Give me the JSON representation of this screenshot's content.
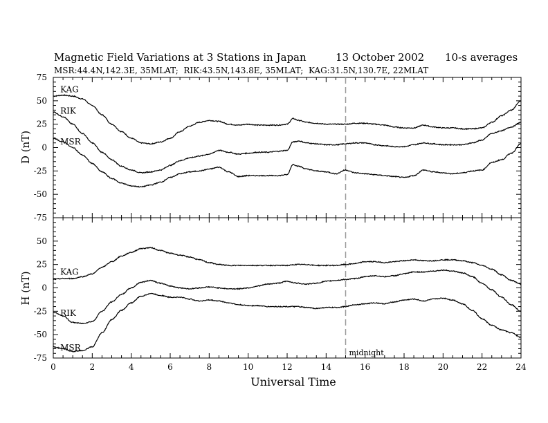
{
  "figure": {
    "title_main": "Magnetic Field Variations at 3 Stations in Japan",
    "date": "13 October 2002",
    "averaging": "10-s averages",
    "station_info": "MSR:44.4N,142.3E, 35MLAT;  RIK:43.5N,143.8E, 35MLAT;  KAG:31.5N,130.7E, 22MLAT"
  },
  "chart_data": [
    {
      "type": "line",
      "panel": "top",
      "ylabel": "D (nT)",
      "xlabel": "",
      "ylim": [
        -75,
        75
      ],
      "xlim": [
        0,
        24
      ],
      "yticks": [
        -75,
        -50,
        -25,
        0,
        25,
        50,
        75
      ],
      "xticks": [
        0,
        2,
        4,
        6,
        8,
        10,
        12,
        14,
        16,
        18,
        20,
        22,
        24
      ],
      "series": [
        {
          "name": "KAG",
          "label_at": [
            0.5,
            57
          ],
          "x": [
            0,
            0.5,
            1,
            1.5,
            2,
            2.5,
            3,
            3.5,
            4,
            4.5,
            5,
            5.5,
            6,
            6.5,
            7,
            7.5,
            8,
            8.5,
            9,
            9.5,
            10,
            10.5,
            11,
            11.5,
            12,
            12.3,
            12.6,
            13,
            13.5,
            14,
            14.5,
            15,
            15.5,
            16,
            16.5,
            17,
            17.5,
            18,
            18.5,
            19,
            19.5,
            20,
            20.5,
            21,
            21.5,
            22,
            22.5,
            23,
            23.5,
            24
          ],
          "y": [
            55,
            56,
            55,
            52,
            45,
            35,
            25,
            17,
            10,
            5,
            4,
            6,
            10,
            17,
            23,
            27,
            29,
            28,
            25,
            24,
            25,
            24,
            24,
            24,
            25,
            31,
            29,
            27,
            26,
            25,
            25,
            25,
            26,
            26,
            25,
            24,
            22,
            21,
            21,
            24,
            22,
            21,
            21,
            20,
            20,
            21,
            27,
            34,
            40,
            50
          ]
        },
        {
          "name": "RIK",
          "label_at": [
            0.5,
            34
          ],
          "x": [
            0,
            0.5,
            1,
            1.5,
            2,
            2.5,
            3,
            3.5,
            4,
            4.5,
            5,
            5.5,
            6,
            6.5,
            7,
            7.5,
            8,
            8.5,
            9,
            9.5,
            10,
            10.5,
            11,
            11.5,
            12,
            12.3,
            12.6,
            13,
            13.5,
            14,
            14.5,
            15,
            15.5,
            16,
            16.5,
            17,
            17.5,
            18,
            18.5,
            19,
            19.5,
            20,
            20.5,
            21,
            21.5,
            22,
            22.5,
            23,
            23.5,
            24
          ],
          "y": [
            38,
            33,
            25,
            15,
            5,
            -5,
            -13,
            -20,
            -24,
            -27,
            -26,
            -24,
            -19,
            -14,
            -11,
            -9,
            -7,
            -3,
            -5,
            -7,
            -6,
            -5,
            -5,
            -4,
            -3,
            6,
            7,
            5,
            4,
            3,
            3,
            4,
            5,
            5,
            3,
            2,
            1,
            1,
            3,
            5,
            4,
            3,
            3,
            3,
            5,
            8,
            15,
            18,
            22,
            27
          ]
        },
        {
          "name": "MSR",
          "label_at": [
            0.5,
            1
          ],
          "x": [
            0,
            0.5,
            1,
            1.5,
            2,
            2.5,
            3,
            3.5,
            4,
            4.5,
            5,
            5.5,
            6,
            6.5,
            7,
            7.5,
            8,
            8.5,
            9,
            9.5,
            10,
            10.5,
            11,
            11.5,
            12,
            12.3,
            12.6,
            13,
            13.5,
            14,
            14.5,
            15,
            15.5,
            16,
            16.5,
            17,
            17.5,
            18,
            18.5,
            19,
            19.5,
            20,
            20.5,
            21,
            21.5,
            22,
            22.5,
            23,
            23.5,
            24
          ],
          "y": [
            10,
            6,
            0,
            -8,
            -17,
            -26,
            -33,
            -38,
            -41,
            -42,
            -40,
            -37,
            -32,
            -28,
            -26,
            -25,
            -23,
            -21,
            -26,
            -31,
            -30,
            -30,
            -30,
            -30,
            -29,
            -18,
            -20,
            -23,
            -25,
            -26,
            -28,
            -24,
            -27,
            -28,
            -29,
            -30,
            -31,
            -32,
            -30,
            -24,
            -26,
            -27,
            -28,
            -27,
            -25,
            -24,
            -16,
            -13,
            -6,
            4
          ]
        }
      ]
    },
    {
      "type": "line",
      "panel": "bottom",
      "ylabel": "H (nT)",
      "xlabel": "Universal Time",
      "ylim": [
        -75,
        75
      ],
      "xlim": [
        0,
        24
      ],
      "yticks": [
        -75,
        -50,
        -25,
        0,
        25,
        50
      ],
      "xticks": [
        0,
        2,
        4,
        6,
        8,
        10,
        12,
        14,
        16,
        18,
        20,
        22,
        24
      ],
      "series": [
        {
          "name": "KAG",
          "label_at": [
            0.5,
            12
          ],
          "x": [
            0,
            0.5,
            1,
            1.5,
            2,
            2.5,
            3,
            3.5,
            4,
            4.5,
            5,
            5.5,
            6,
            6.5,
            7,
            7.5,
            8,
            8.5,
            9,
            9.5,
            10,
            10.5,
            11,
            11.5,
            12,
            12.5,
            13,
            13.5,
            14,
            14.5,
            15,
            15.5,
            16,
            16.5,
            17,
            17.5,
            18,
            18.5,
            19,
            19.5,
            20,
            20.5,
            21,
            21.5,
            22,
            22.5,
            23,
            23.5,
            24
          ],
          "y": [
            9,
            10,
            10,
            12,
            15,
            22,
            28,
            34,
            38,
            42,
            43,
            40,
            37,
            35,
            33,
            30,
            27,
            25,
            24,
            24,
            24,
            24,
            24,
            24,
            24,
            25,
            25,
            24,
            24,
            24,
            25,
            26,
            28,
            28,
            27,
            28,
            29,
            30,
            29,
            29,
            30,
            30,
            29,
            27,
            24,
            20,
            14,
            8,
            4
          ]
        },
        {
          "name": "RIK",
          "label_at": [
            0.5,
            -32
          ],
          "x": [
            0,
            0.5,
            1,
            1.5,
            2,
            2.5,
            3,
            3.5,
            4,
            4.5,
            5,
            5.5,
            6,
            6.5,
            7,
            7.5,
            8,
            8.5,
            9,
            9.5,
            10,
            10.5,
            11,
            11.5,
            12,
            12.5,
            13,
            13.5,
            14,
            14.5,
            15,
            15.5,
            16,
            16.5,
            17,
            17.5,
            18,
            18.5,
            19,
            19.5,
            20,
            20.5,
            21,
            21.5,
            22,
            22.5,
            23,
            23.5,
            24
          ],
          "y": [
            -26,
            -30,
            -37,
            -38,
            -36,
            -25,
            -15,
            -7,
            0,
            6,
            8,
            5,
            2,
            0,
            -1,
            0,
            1,
            0,
            -1,
            -1,
            0,
            2,
            4,
            5,
            7,
            5,
            4,
            5,
            7,
            8,
            9,
            10,
            12,
            13,
            12,
            13,
            15,
            17,
            17,
            18,
            19,
            18,
            16,
            12,
            5,
            -2,
            -10,
            -18,
            -25
          ]
        },
        {
          "name": "MSR",
          "label_at": [
            0.5,
            -69
          ],
          "x": [
            0,
            0.5,
            1,
            1.5,
            2,
            2.5,
            3,
            3.5,
            4,
            4.5,
            5,
            5.5,
            6,
            6.5,
            7,
            7.5,
            8,
            8.5,
            9,
            9.5,
            10,
            10.5,
            11,
            11.5,
            12,
            12.5,
            13,
            13.5,
            14,
            14.5,
            15,
            15.5,
            16,
            16.5,
            17,
            17.5,
            18,
            18.5,
            19,
            19.5,
            20,
            20.5,
            21,
            21.5,
            22,
            22.5,
            23,
            23.5,
            24
          ],
          "y": [
            -63,
            -65,
            -68,
            -67,
            -63,
            -48,
            -34,
            -24,
            -16,
            -9,
            -6,
            -8,
            -10,
            -10,
            -12,
            -14,
            -13,
            -14,
            -16,
            -18,
            -19,
            -19,
            -20,
            -20,
            -20,
            -20,
            -21,
            -22,
            -21,
            -21,
            -20,
            -18,
            -17,
            -16,
            -17,
            -15,
            -13,
            -12,
            -14,
            -12,
            -11,
            -13,
            -17,
            -24,
            -33,
            -40,
            -45,
            -48,
            -53
          ]
        }
      ]
    }
  ],
  "annotation": {
    "marker_x": 15,
    "marker_label": "midnight"
  }
}
